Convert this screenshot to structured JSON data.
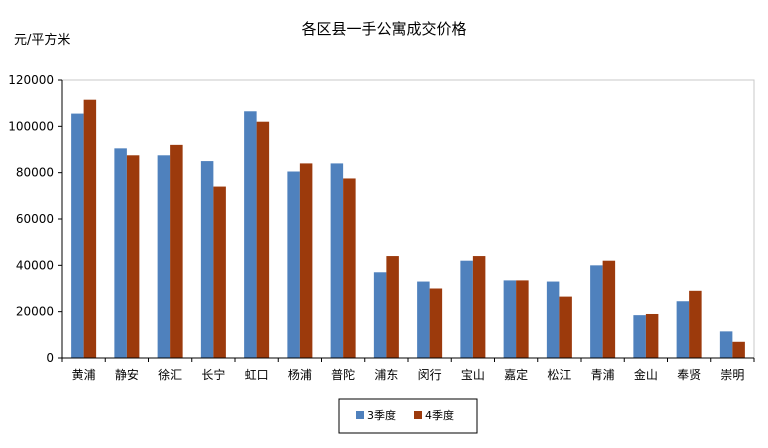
{
  "chart_data": {
    "type": "bar",
    "title": "各区县一手公寓成交价格",
    "ylabel": "元/平方米",
    "xlabel": "",
    "ylim": [
      0,
      120000
    ],
    "yticks": [
      0,
      20000,
      40000,
      60000,
      80000,
      100000,
      120000
    ],
    "grid": false,
    "legend_position": "bottom",
    "categories": [
      "黄浦",
      "静安",
      "徐汇",
      "长宁",
      "虹口",
      "杨浦",
      "普陀",
      "浦东",
      "闵行",
      "宝山",
      "嘉定",
      "松江",
      "青浦",
      "金山",
      "奉贤",
      "崇明"
    ],
    "series": [
      {
        "name": "3季度",
        "color": "#4F81BD",
        "values": [
          105500,
          90500,
          87500,
          85000,
          106500,
          80500,
          84000,
          37000,
          33000,
          42000,
          33500,
          33000,
          40000,
          18500,
          24500,
          11500
        ]
      },
      {
        "name": "4季度",
        "color": "#9C3A0C",
        "values": [
          111500,
          87500,
          92000,
          74000,
          102000,
          84000,
          77500,
          44000,
          30000,
          44000,
          33500,
          26500,
          42000,
          19000,
          29000,
          7000
        ]
      }
    ]
  }
}
